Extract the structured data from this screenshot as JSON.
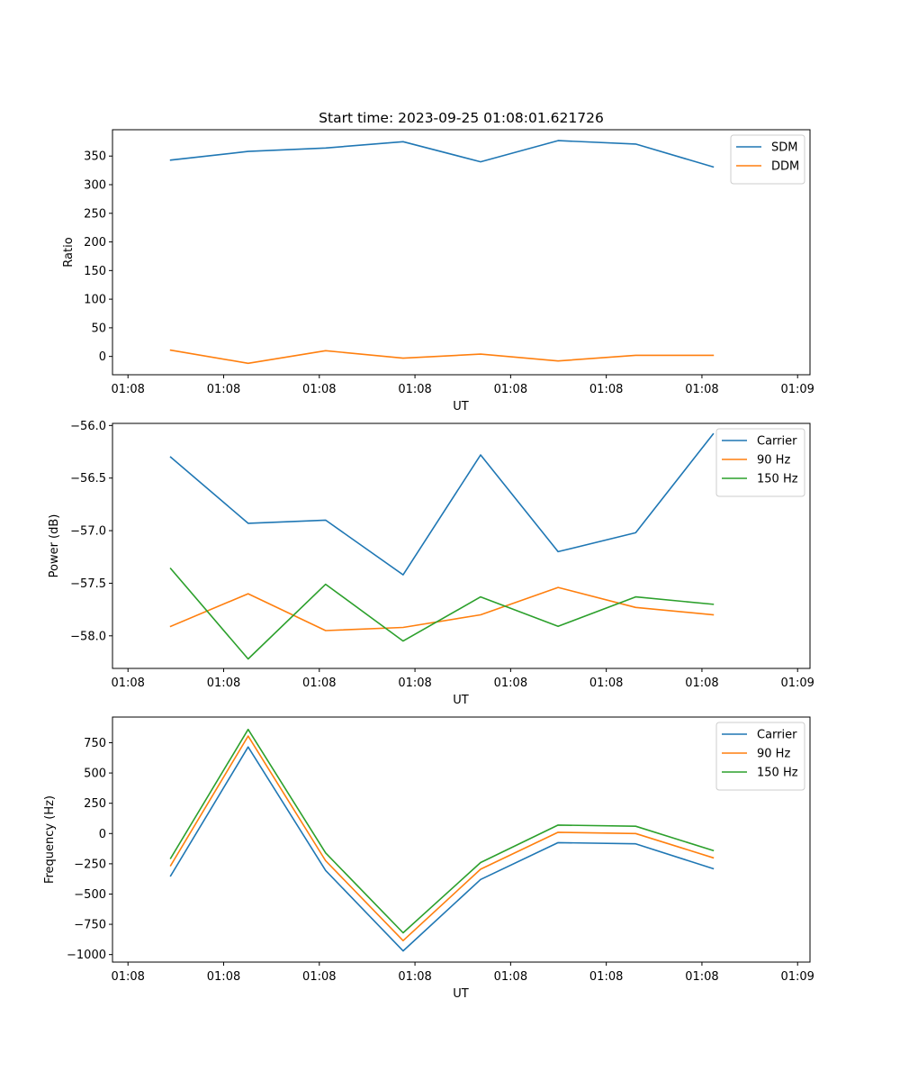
{
  "title": "Start time: 2023-09-25 01:08:01.621726",
  "colors": {
    "blue": "#1f77b4",
    "orange": "#ff7f0e",
    "green": "#2ca02c"
  },
  "chart_data": [
    {
      "type": "line",
      "title": "Start time: 2023-09-25 01:08:01.621726",
      "xlabel": "UT",
      "ylabel": "Ratio",
      "x_tick_labels": [
        "01:08",
        "01:08",
        "01:08",
        "01:08",
        "01:08",
        "01:08",
        "01:08",
        "01:09"
      ],
      "y_ticks": [
        0,
        50,
        100,
        150,
        200,
        250,
        300,
        350
      ],
      "y_tick_labels": [
        "0",
        "50",
        "100",
        "150",
        "200",
        "250",
        "300",
        "350"
      ],
      "ylim": [
        -32,
        396
      ],
      "x": [
        1,
        2,
        3,
        4,
        5,
        6,
        7,
        8
      ],
      "xlim": [
        0.25,
        9.25
      ],
      "legend_position": "top-right",
      "series": [
        {
          "name": "SDM",
          "color": "#1f77b4",
          "values": [
            343,
            358,
            364,
            375,
            340,
            377,
            371,
            331
          ]
        },
        {
          "name": "DDM",
          "color": "#ff7f0e",
          "values": [
            11,
            -12,
            10,
            -3,
            4,
            -8,
            2,
            2
          ]
        }
      ]
    },
    {
      "type": "line",
      "title": "",
      "xlabel": "UT",
      "ylabel": "Power (dB)",
      "x_tick_labels": [
        "01:08",
        "01:08",
        "01:08",
        "01:08",
        "01:08",
        "01:08",
        "01:08",
        "01:09"
      ],
      "y_ticks": [
        -58.0,
        -57.5,
        -57.0,
        -56.5,
        -56.0
      ],
      "y_tick_labels": [
        "−58.0",
        "−57.5",
        "−57.0",
        "−56.5",
        "−56.0"
      ],
      "ylim": [
        -58.31,
        -55.98
      ],
      "x": [
        1,
        2,
        3,
        4,
        5,
        6,
        7,
        8
      ],
      "xlim": [
        0.25,
        9.25
      ],
      "legend_position": "top-right",
      "series": [
        {
          "name": "Carrier",
          "color": "#1f77b4",
          "values": [
            -56.3,
            -56.93,
            -56.9,
            -57.42,
            -56.28,
            -57.2,
            -57.02,
            -56.08
          ]
        },
        {
          "name": "90 Hz",
          "color": "#ff7f0e",
          "values": [
            -57.91,
            -57.6,
            -57.95,
            -57.92,
            -57.8,
            -57.54,
            -57.73,
            -57.8
          ]
        },
        {
          "name": "150 Hz",
          "color": "#2ca02c",
          "values": [
            -57.36,
            -58.22,
            -57.51,
            -58.05,
            -57.63,
            -57.91,
            -57.63,
            -57.7
          ]
        }
      ]
    },
    {
      "type": "line",
      "title": "",
      "xlabel": "UT",
      "ylabel": "Frequency (Hz)",
      "x_tick_labels": [
        "01:08",
        "01:08",
        "01:08",
        "01:08",
        "01:08",
        "01:08",
        "01:08",
        "01:09"
      ],
      "y_ticks": [
        -1000,
        -750,
        -500,
        -250,
        0,
        250,
        500,
        750
      ],
      "y_tick_labels": [
        "−1000",
        "−750",
        "−500",
        "−250",
        "0",
        "250",
        "500",
        "750"
      ],
      "ylim": [
        -1062,
        962
      ],
      "x": [
        1,
        2,
        3,
        4,
        5,
        6,
        7,
        8
      ],
      "xlim": [
        0.25,
        9.25
      ],
      "legend_position": "top-right",
      "series": [
        {
          "name": "Carrier",
          "color": "#1f77b4",
          "values": [
            -350,
            715,
            -305,
            -970,
            -380,
            -75,
            -85,
            -290
          ]
        },
        {
          "name": "90 Hz",
          "color": "#ff7f0e",
          "values": [
            -265,
            805,
            -225,
            -885,
            -295,
            10,
            0,
            -200
          ]
        },
        {
          "name": "150 Hz",
          "color": "#2ca02c",
          "values": [
            -205,
            860,
            -160,
            -820,
            -240,
            70,
            60,
            -140
          ]
        }
      ]
    }
  ]
}
